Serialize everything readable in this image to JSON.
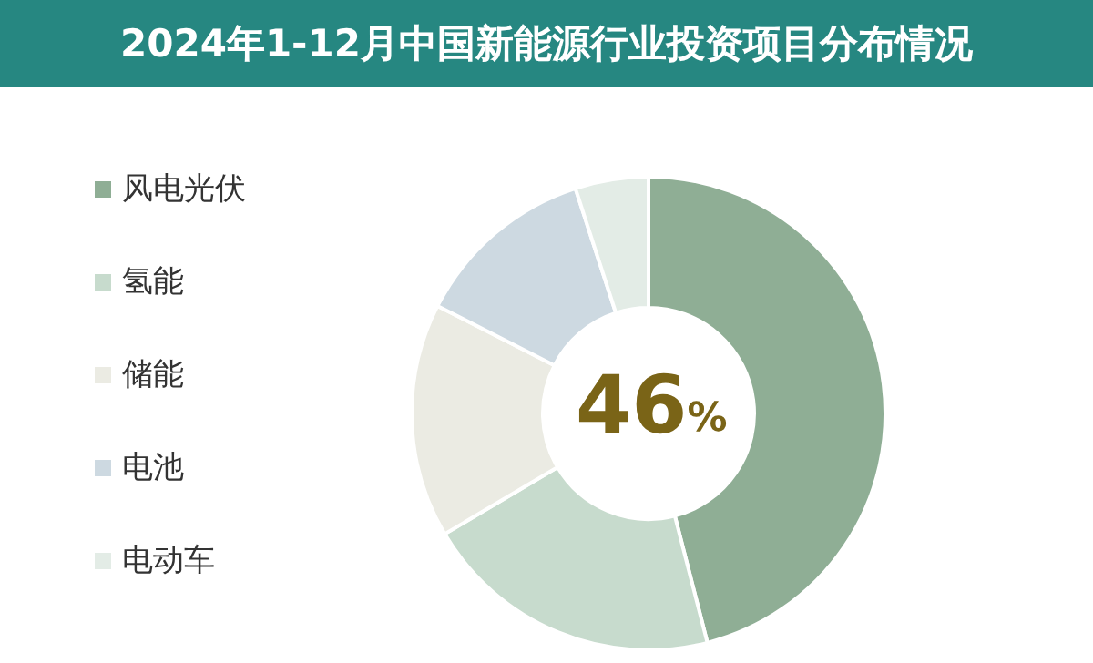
{
  "chart_data": {
    "type": "donut",
    "title": "2024年1-12月中国新能源行业投资项目分布情况",
    "categories": [
      "风电光伏",
      "氢能",
      "储能",
      "电池",
      "电动车"
    ],
    "values": [
      46,
      20.5,
      16,
      12.5,
      5
    ],
    "annotations": [
      "46%"
    ],
    "colors": [
      "#8fae95",
      "#c7dbcd",
      "#ebebe3",
      "#cdd9e1",
      "#e3ece6"
    ],
    "legend": "left"
  }
}
